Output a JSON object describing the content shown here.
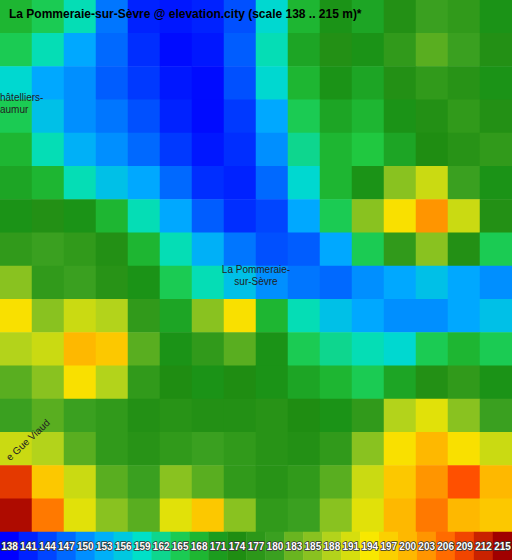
{
  "chart_data": {
    "type": "heatmap",
    "title": "La Pommeraie-sur-Sèvre @ elevation.city (scale 138 .. 215 m)*",
    "tick_labels": false,
    "cells": [
      [
        168,
        165,
        160,
        148,
        141,
        140,
        141,
        145,
        158,
        168,
        172,
        170,
        175,
        180,
        178,
        172
      ],
      [
        165,
        160,
        152,
        147,
        142,
        139,
        140,
        146,
        160,
        170,
        175,
        172,
        178,
        182,
        180,
        175
      ],
      [
        158,
        152,
        150,
        146,
        143,
        140,
        139,
        145,
        158,
        168,
        172,
        170,
        175,
        178,
        176,
        172
      ],
      [
        165,
        155,
        150,
        148,
        145,
        141,
        139,
        143,
        152,
        165,
        170,
        168,
        172,
        175,
        178,
        175
      ],
      [
        168,
        160,
        153,
        150,
        147,
        143,
        140,
        142,
        150,
        162,
        168,
        166,
        170,
        174,
        176,
        178
      ],
      [
        170,
        168,
        160,
        155,
        152,
        147,
        142,
        141,
        147,
        158,
        168,
        172,
        185,
        190,
        180,
        172
      ],
      [
        172,
        175,
        172,
        168,
        160,
        152,
        146,
        142,
        144,
        152,
        165,
        185,
        195,
        203,
        190,
        175
      ],
      [
        178,
        180,
        178,
        175,
        168,
        160,
        153,
        148,
        145,
        146,
        152,
        165,
        178,
        185,
        175,
        165
      ],
      [
        185,
        178,
        180,
        176,
        172,
        165,
        160,
        155,
        150,
        148,
        147,
        150,
        152,
        155,
        152,
        150
      ],
      [
        195,
        185,
        190,
        188,
        178,
        170,
        185,
        195,
        168,
        160,
        155,
        152,
        150,
        150,
        152,
        155
      ],
      [
        188,
        190,
        200,
        198,
        182,
        172,
        178,
        182,
        172,
        165,
        162,
        160,
        158,
        165,
        168,
        165
      ],
      [
        182,
        185,
        195,
        188,
        178,
        174,
        172,
        174,
        172,
        170,
        168,
        165,
        170,
        175,
        178,
        172
      ],
      [
        180,
        182,
        180,
        178,
        175,
        176,
        175,
        175,
        176,
        174,
        172,
        178,
        188,
        192,
        185,
        180
      ],
      [
        190,
        188,
        182,
        178,
        176,
        178,
        180,
        178,
        176,
        175,
        178,
        185,
        195,
        200,
        195,
        190
      ],
      [
        210,
        198,
        190,
        182,
        180,
        185,
        182,
        178,
        176,
        178,
        182,
        190,
        198,
        203,
        208,
        200
      ],
      [
        214,
        205,
        192,
        185,
        182,
        192,
        198,
        185,
        178,
        180,
        185,
        192,
        200,
        205,
        200,
        198
      ]
    ],
    "colorbar_range": [
      138,
      215
    ],
    "colorbar_ticks": [
      138,
      141,
      144,
      147,
      150,
      153,
      156,
      159,
      162,
      165,
      168,
      171,
      174,
      177,
      180,
      183,
      185,
      188,
      191,
      194,
      197,
      200,
      203,
      206,
      209,
      212,
      215
    ],
    "annotations": [
      {
        "lines": [
          "La Pommeraie-",
          "sur-Sèvre"
        ],
        "x": 7.5,
        "y": 7.8
      },
      {
        "lines": [
          "hâtelliers-",
          "aumur"
        ],
        "x": -0.5,
        "y": 2.6
      },
      {
        "lines": [
          "e Gue Viaud"
        ],
        "x": 0.375,
        "y": 12.73
      }
    ]
  }
}
